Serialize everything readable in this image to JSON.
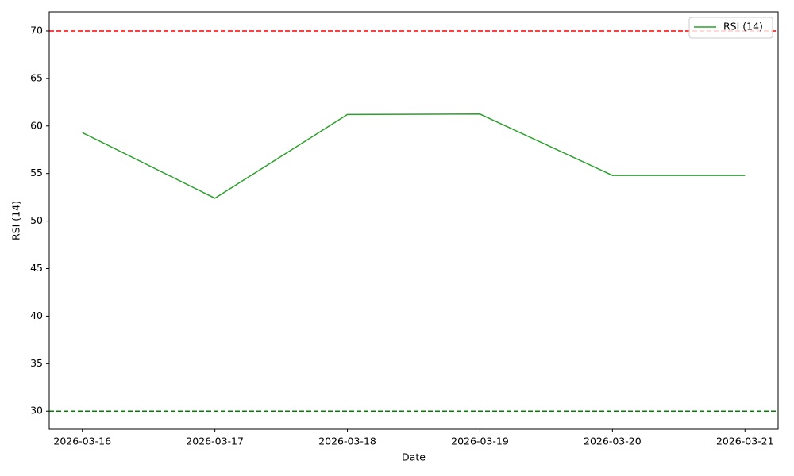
{
  "chart_data": {
    "type": "line",
    "xlabel": "Date",
    "ylabel": "RSI (14)",
    "categories": [
      "2026-03-16",
      "2026-03-17",
      "2026-03-18",
      "2026-03-19",
      "2026-03-20",
      "2026-03-21"
    ],
    "series": [
      {
        "name": "RSI (14)",
        "color": "#2ca02c",
        "values": [
          59.3,
          52.4,
          61.2,
          61.25,
          54.8,
          54.8
        ]
      }
    ],
    "reference_lines": [
      {
        "value": 70,
        "color": "#ff0000"
      },
      {
        "value": 30,
        "color": "#008000"
      }
    ],
    "ylim": [
      28.1,
      72.0
    ],
    "yticks": [
      30,
      35,
      40,
      45,
      50,
      55,
      60,
      65,
      70
    ],
    "grid": false,
    "legend": "upper right"
  }
}
